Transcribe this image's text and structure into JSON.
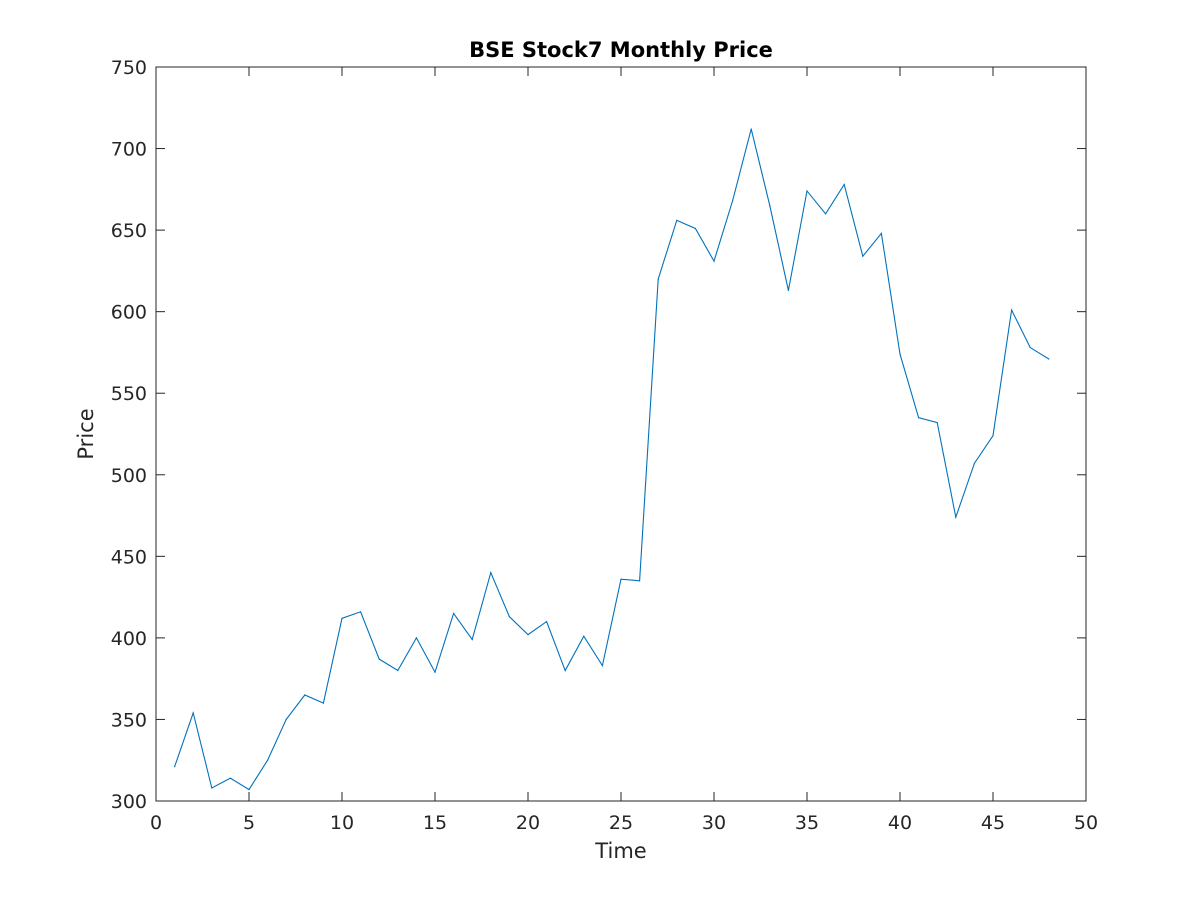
{
  "chart_data": {
    "type": "line",
    "title": "BSE Stock7 Monthly Price",
    "xlabel": "Time",
    "ylabel": "Price",
    "xlim": [
      0,
      50
    ],
    "ylim": [
      300,
      750
    ],
    "x_ticks": [
      0,
      5,
      10,
      15,
      20,
      25,
      30,
      35,
      40,
      45,
      50
    ],
    "y_ticks": [
      300,
      350,
      400,
      450,
      500,
      550,
      600,
      650,
      700,
      750
    ],
    "grid": false,
    "series": [
      {
        "color": "#0072BD",
        "x": [
          1,
          2,
          3,
          4,
          5,
          6,
          7,
          8,
          9,
          10,
          11,
          12,
          13,
          14,
          15,
          16,
          17,
          18,
          19,
          20,
          21,
          22,
          23,
          24,
          25,
          26,
          27,
          28,
          29,
          30,
          31,
          32,
          33,
          34,
          35,
          36,
          37,
          38,
          39,
          40,
          41,
          42,
          43,
          44,
          45,
          46,
          47,
          48
        ],
        "values": [
          321,
          354,
          308,
          314,
          307,
          325,
          350,
          365,
          360,
          412,
          416,
          387,
          380,
          400,
          379,
          415,
          399,
          440,
          413,
          402,
          410,
          380,
          401,
          383,
          436,
          435,
          620,
          656,
          651,
          631,
          668,
          712,
          665,
          613,
          674,
          660,
          678,
          634,
          648,
          574,
          535,
          532,
          474,
          507,
          524,
          601,
          578,
          571
        ]
      }
    ]
  }
}
